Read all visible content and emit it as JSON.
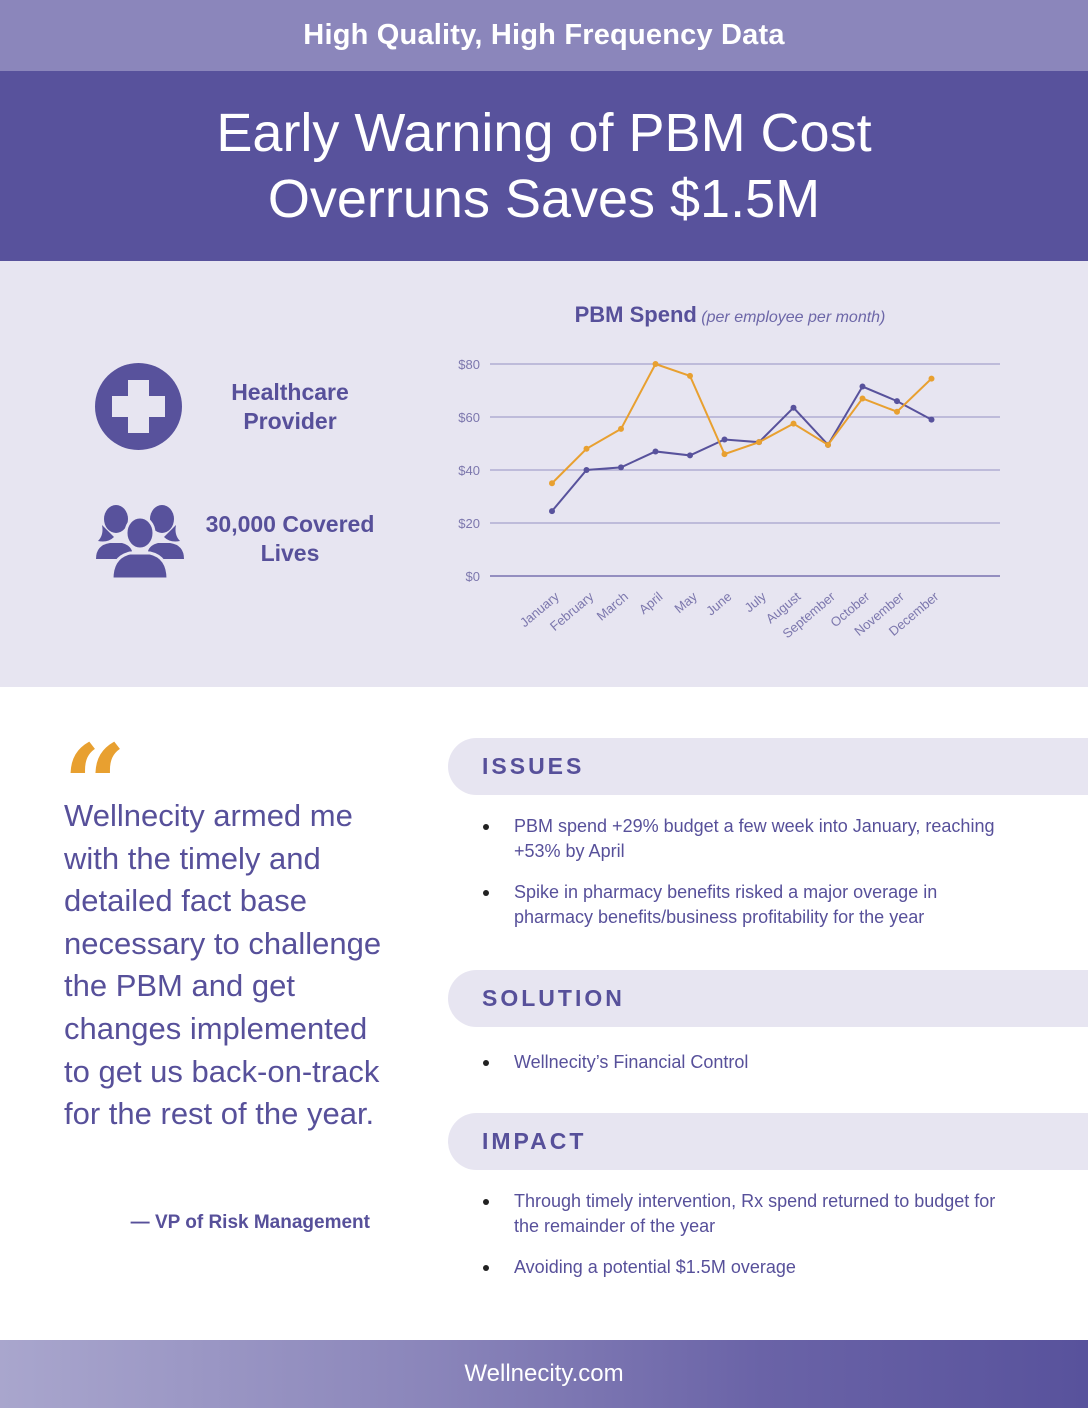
{
  "header": {
    "tagline": "High Quality, High Frequency Data",
    "title": "Early Warning of PBM Cost Overruns Saves $1.5M"
  },
  "stats": [
    {
      "icon": "medical-cross-icon",
      "label": "Healthcare Provider"
    },
    {
      "icon": "people-group-icon",
      "label": "30,000 Covered Lives"
    }
  ],
  "colors": {
    "brand_purple": "#58529c",
    "light_purple": "#8b86bb",
    "band_bg": "#e7e5f1",
    "accent_orange": "#e8a030",
    "text_purple": "#57509a"
  },
  "chart_data": {
    "type": "line",
    "title": "PBM Spend",
    "subtitle": "(per employee per month)",
    "xlabel": "",
    "ylabel": "",
    "categories": [
      "January",
      "February",
      "March",
      "April",
      "May",
      "June",
      "July",
      "August",
      "September",
      "October",
      "November",
      "December"
    ],
    "yticks": [
      "$0",
      "$20",
      "$40",
      "$60",
      "$80"
    ],
    "ylim": [
      0,
      80
    ],
    "grid": true,
    "legend": "none",
    "series": [
      {
        "name": "Series 1 (purple)",
        "color": "#58529c",
        "values": [
          24.5,
          40,
          41,
          47,
          45.5,
          51.5,
          50.5,
          63.5,
          49.5,
          71.5,
          66,
          59
        ]
      },
      {
        "name": "Series 2 (orange)",
        "color": "#e8a030",
        "values": [
          35,
          48,
          55.5,
          80,
          75.5,
          46,
          50.5,
          57.5,
          49.5,
          67,
          62,
          74.5
        ]
      }
    ]
  },
  "testimonial": {
    "quote_mark": "“",
    "text": "Wellnecity armed me with the timely and detailed fact base necessary to challenge the PBM and get changes implemented to get us back-on-track for the rest of the year.",
    "attribution": "— VP of Risk Management"
  },
  "sections": [
    {
      "heading": "ISSUES",
      "bullets": [
        "PBM spend +29% budget a few week into January, reaching +53% by April",
        "Spike in pharmacy benefits risked a major overage in pharmacy benefits/business profitability for the year"
      ]
    },
    {
      "heading": "SOLUTION",
      "bullets": [
        "Wellnecity’s Financial Control"
      ]
    },
    {
      "heading": "IMPACT",
      "bullets": [
        "Through timely intervention, Rx spend returned to budget for the remainder of the year",
        "Avoiding a potential $1.5M overage"
      ]
    }
  ],
  "footer": {
    "website": "Wellnecity.com"
  }
}
